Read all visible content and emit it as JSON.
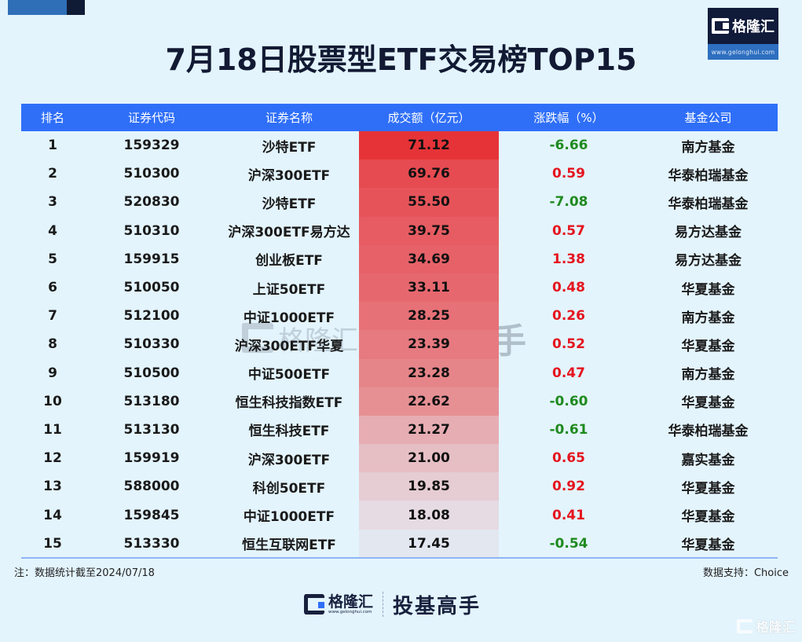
{
  "header": {
    "title": "7月18日股票型ETF交易榜TOP15",
    "logo_name": "格隆汇",
    "logo_url": "www.gelonghui.com"
  },
  "table": {
    "columns": [
      "排名",
      "证券代码",
      "证券名称",
      "成交额（亿元）",
      "涨跌幅（%）",
      "基金公司"
    ],
    "rows": [
      {
        "rank": "1",
        "code": "159329",
        "name": "沙特ETF",
        "turnover": "71.12",
        "change": "-6.66",
        "company": "南方基金",
        "heat": "#e63338",
        "dir": "neg"
      },
      {
        "rank": "2",
        "code": "510300",
        "name": "沪深300ETF",
        "turnover": "69.76",
        "change": "0.59",
        "company": "华泰柏瑞基金",
        "heat": "#e64b51",
        "dir": "pos"
      },
      {
        "rank": "3",
        "code": "520830",
        "name": "沙特ETF",
        "turnover": "55.50",
        "change": "-7.08",
        "company": "华泰柏瑞基金",
        "heat": "#e6545a",
        "dir": "neg"
      },
      {
        "rank": "4",
        "code": "510310",
        "name": "沪深300ETF易方达",
        "turnover": "39.75",
        "change": "0.57",
        "company": "易方达基金",
        "heat": "#e65c62",
        "dir": "pos"
      },
      {
        "rank": "5",
        "code": "159915",
        "name": "创业板ETF",
        "turnover": "34.69",
        "change": "1.38",
        "company": "易方达基金",
        "heat": "#e66268",
        "dir": "pos"
      },
      {
        "rank": "6",
        "code": "510050",
        "name": "上证50ETF",
        "turnover": "33.11",
        "change": "0.48",
        "company": "华夏基金",
        "heat": "#e6686e",
        "dir": "pos"
      },
      {
        "rank": "7",
        "code": "512100",
        "name": "中证1000ETF",
        "turnover": "28.25",
        "change": "0.26",
        "company": "南方基金",
        "heat": "#e67177",
        "dir": "pos"
      },
      {
        "rank": "8",
        "code": "510330",
        "name": "沪深300ETF华夏",
        "turnover": "23.39",
        "change": "0.52",
        "company": "华夏基金",
        "heat": "#e67a80",
        "dir": "pos"
      },
      {
        "rank": "9",
        "code": "510500",
        "name": "中证500ETF",
        "turnover": "23.28",
        "change": "0.47",
        "company": "南方基金",
        "heat": "#e68589",
        "dir": "pos"
      },
      {
        "rank": "10",
        "code": "513180",
        "name": "恒生科技指数ETF",
        "turnover": "22.62",
        "change": "-0.60",
        "company": "华夏基金",
        "heat": "#e69094",
        "dir": "neg"
      },
      {
        "rank": "11",
        "code": "513130",
        "name": "恒生科技ETF",
        "turnover": "21.27",
        "change": "-0.61",
        "company": "华泰柏瑞基金",
        "heat": "#e6adb3",
        "dir": "neg"
      },
      {
        "rank": "12",
        "code": "159919",
        "name": "沪深300ETF",
        "turnover": "21.00",
        "change": "0.65",
        "company": "嘉实基金",
        "heat": "#e6bfc5",
        "dir": "pos"
      },
      {
        "rank": "13",
        "code": "588000",
        "name": "科创50ETF",
        "turnover": "19.85",
        "change": "0.92",
        "company": "华夏基金",
        "heat": "#e6ccd3",
        "dir": "pos"
      },
      {
        "rank": "14",
        "code": "159845",
        "name": "中证1000ETF",
        "turnover": "18.08",
        "change": "0.41",
        "company": "华夏基金",
        "heat": "#e6dbe3",
        "dir": "pos"
      },
      {
        "rank": "15",
        "code": "513330",
        "name": "恒生互联网ETF",
        "turnover": "17.45",
        "change": "-0.54",
        "company": "华夏基金",
        "heat": "#e3e7f0",
        "dir": "neg"
      }
    ]
  },
  "footer": {
    "note": "注：数据统计截至2024/07/18",
    "source": "数据支持：Choice",
    "brand": "格隆汇",
    "brand_url": "www.gelonghui.com",
    "slogan": "投基高手",
    "watermark_name": "格隆汇",
    "watermark_slogan": "投基高手",
    "corner_watermark": "格隆汇"
  },
  "colors": {
    "header_bg": "#2f6ff8",
    "page_bg": "#e3f4fd",
    "positive": "#e5141e",
    "negative": "#1f8a1f",
    "title": "#121a33"
  },
  "chart_data": {
    "type": "table",
    "title": "7月18日股票型ETF交易榜TOP15",
    "columns": [
      "排名",
      "证券代码",
      "证券名称",
      "成交额（亿元）",
      "涨跌幅（%）",
      "基金公司"
    ],
    "rows": [
      [
        1,
        "159329",
        "沙特ETF",
        71.12,
        -6.66,
        "南方基金"
      ],
      [
        2,
        "510300",
        "沪深300ETF",
        69.76,
        0.59,
        "华泰柏瑞基金"
      ],
      [
        3,
        "520830",
        "沙特ETF",
        55.5,
        -7.08,
        "华泰柏瑞基金"
      ],
      [
        4,
        "510310",
        "沪深300ETF易方达",
        39.75,
        0.57,
        "易方达基金"
      ],
      [
        5,
        "159915",
        "创业板ETF",
        34.69,
        1.38,
        "易方达基金"
      ],
      [
        6,
        "510050",
        "上证50ETF",
        33.11,
        0.48,
        "华夏基金"
      ],
      [
        7,
        "512100",
        "中证1000ETF",
        28.25,
        0.26,
        "南方基金"
      ],
      [
        8,
        "510330",
        "沪深300ETF华夏",
        23.39,
        0.52,
        "华夏基金"
      ],
      [
        9,
        "510500",
        "中证500ETF",
        23.28,
        0.47,
        "南方基金"
      ],
      [
        10,
        "513180",
        "恒生科技指数ETF",
        22.62,
        -0.6,
        "华夏基金"
      ],
      [
        11,
        "513130",
        "恒生科技ETF",
        21.27,
        -0.61,
        "华泰柏瑞基金"
      ],
      [
        12,
        "159919",
        "沪深300ETF",
        21.0,
        0.65,
        "嘉实基金"
      ],
      [
        13,
        "588000",
        "科创50ETF",
        19.85,
        0.92,
        "华夏基金"
      ],
      [
        14,
        "159845",
        "中证1000ETF",
        18.08,
        0.41,
        "华夏基金"
      ],
      [
        15,
        "513330",
        "恒生互联网ETF",
        17.45,
        -0.54,
        "华夏基金"
      ]
    ],
    "heatmap_column": "成交额（亿元）",
    "note": "注：数据统计截至2024/07/18",
    "source": "数据支持：Choice"
  }
}
